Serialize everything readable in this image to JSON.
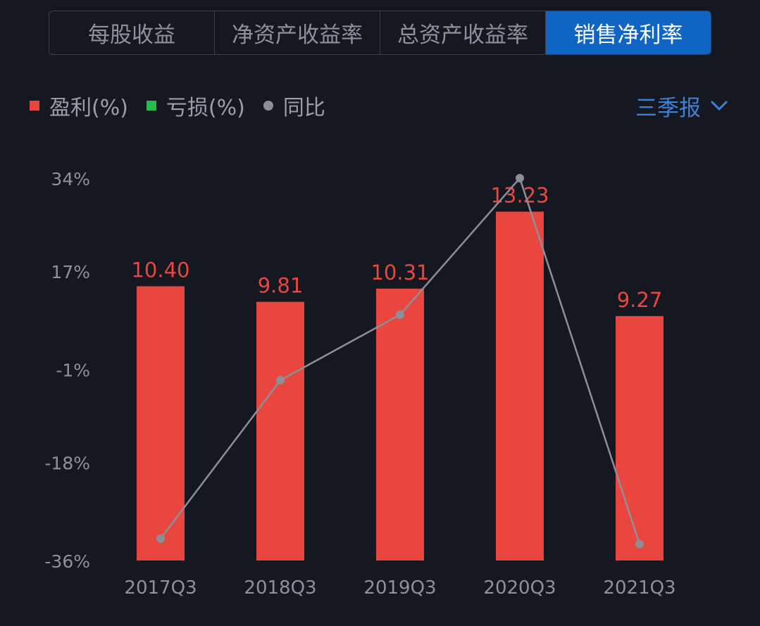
{
  "tabs": [
    {
      "label": "每股收益",
      "active": false
    },
    {
      "label": "净资产收益率",
      "active": false
    },
    {
      "label": "总资产收益率",
      "active": false
    },
    {
      "label": "销售净利率",
      "active": true
    }
  ],
  "legend": {
    "profit": "盈利(%)",
    "loss": "亏损(%)",
    "yoy": "同比"
  },
  "period_selector": {
    "label": "三季报",
    "icon": "chevron-down-icon"
  },
  "colors": {
    "profit": "#e8463f",
    "loss": "#2bb84c",
    "yoy": "#8b8f99",
    "accent": "#1064c4"
  },
  "chart_data": {
    "type": "bar",
    "categories": [
      "2017Q3",
      "2018Q3",
      "2019Q3",
      "2020Q3",
      "2021Q3"
    ],
    "series": [
      {
        "name": "盈利(%)",
        "values": [
          10.4,
          9.81,
          10.31,
          13.23,
          9.27
        ]
      },
      {
        "name": "同比",
        "type": "line",
        "values": [
          -32,
          -3,
          9,
          34,
          -33
        ]
      }
    ],
    "y_tick_labels": [
      "34%",
      "17%",
      "-1%",
      "-18%",
      "-36%"
    ],
    "y_ticks": [
      34,
      17,
      -1,
      -18,
      -36
    ],
    "ylim": [
      -36,
      34
    ],
    "bar_scale": [
      0,
      14.5
    ],
    "data_labels": [
      "10.40",
      "9.81",
      "10.31",
      "13.23",
      "9.27"
    ],
    "grid": false,
    "legend_position": "top-left"
  }
}
